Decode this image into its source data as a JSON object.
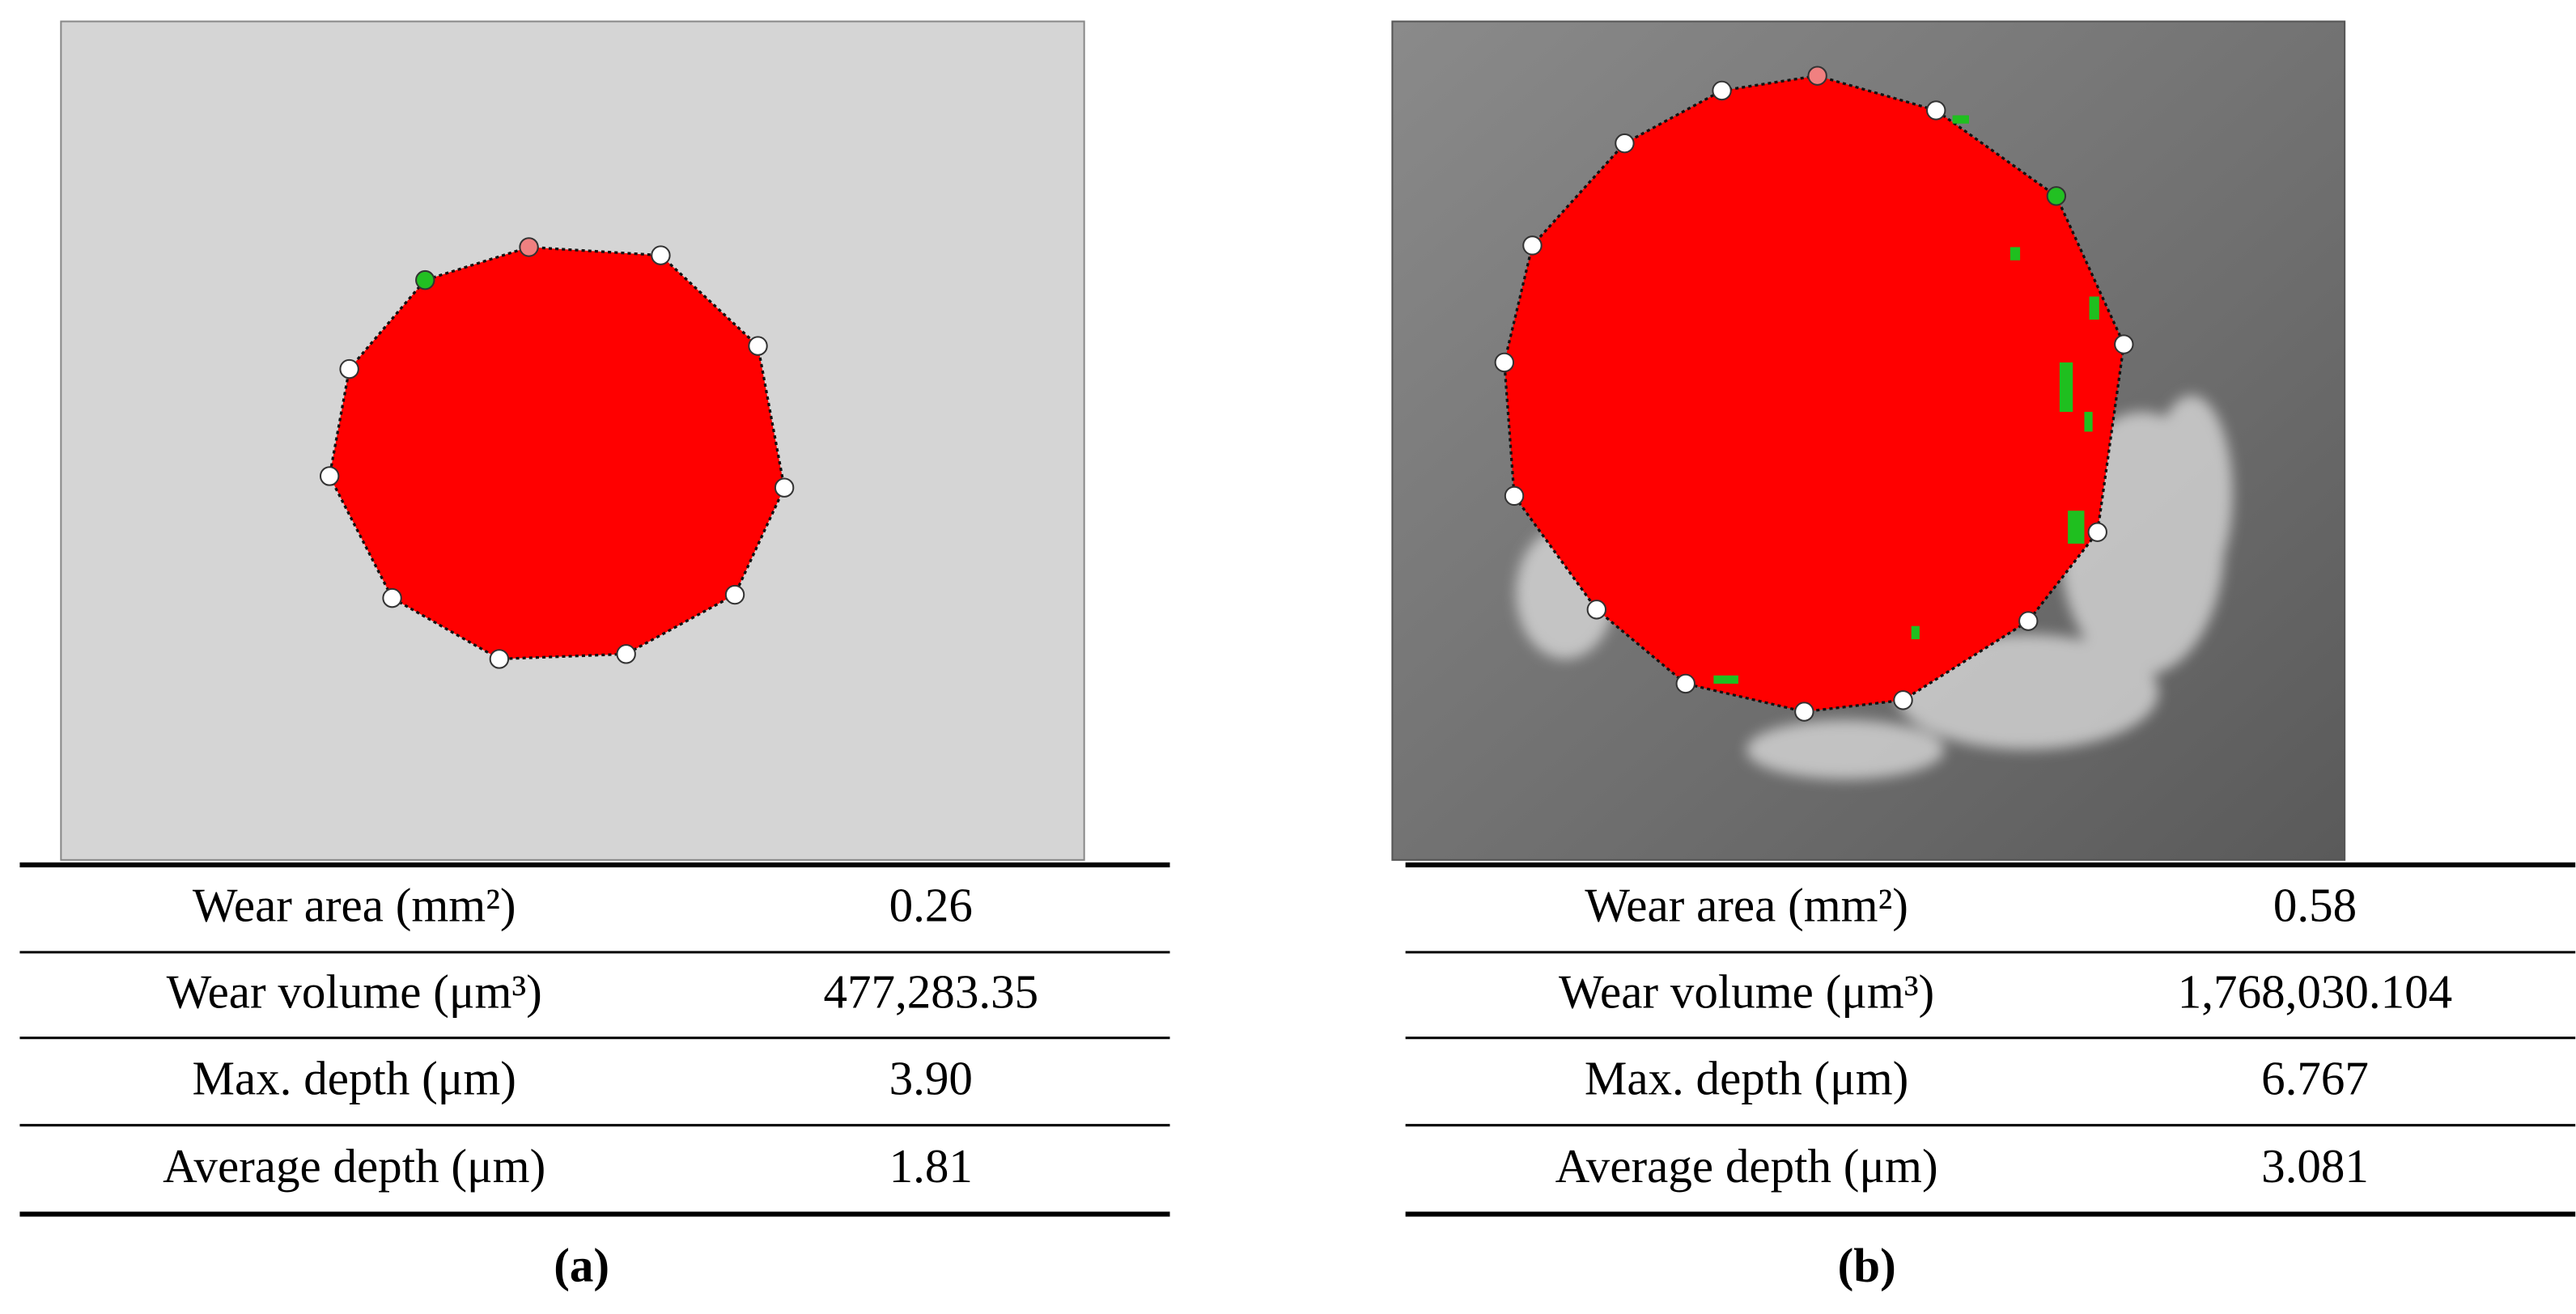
{
  "panels": [
    {
      "caption": "(a)",
      "rows": [
        [
          "Wear area (mm²)",
          "0.26"
        ],
        [
          "Wear volume (μm³)",
          "477,283.35"
        ],
        [
          "Max. depth (μm)",
          "3.90"
        ],
        [
          "Average depth (μm)",
          "1.81"
        ]
      ]
    },
    {
      "caption": "(b)",
      "rows": [
        [
          "Wear area (mm²)",
          "0.58"
        ],
        [
          "Wear volume (μm³)",
          "1,768,030.104"
        ],
        [
          "Max. depth (μm)",
          "6.767"
        ],
        [
          "Average depth (μm)",
          "3.081"
        ]
      ]
    }
  ]
}
